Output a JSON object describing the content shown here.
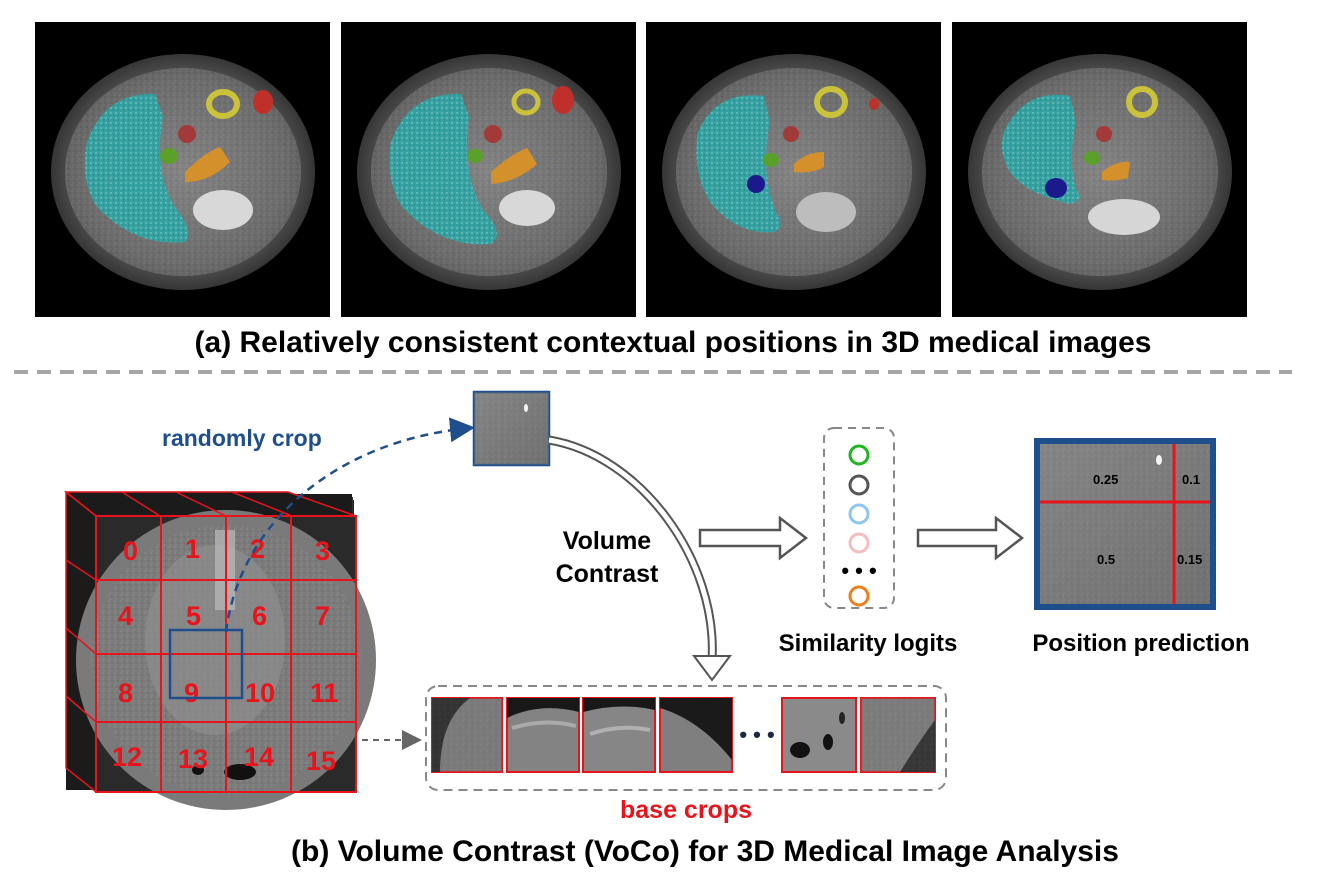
{
  "part_a": {
    "caption": "(a) Relatively consistent contextual positions in 3D medical images",
    "scan_count": 4
  },
  "part_b": {
    "caption": "(b) Volume Contrast (VoCo) for 3D Medical Image Analysis",
    "randomly_crop_label": "randomly crop",
    "volume_contrast_label_line1": "Volume",
    "volume_contrast_label_line2": "Contrast",
    "base_crops_label": "base crops",
    "similarity_logits_label": "Similarity logits",
    "position_prediction_label": "Position prediction",
    "grid_numbers": [
      "0",
      "1",
      "2",
      "3",
      "4",
      "5",
      "6",
      "7",
      "8",
      "9",
      "10",
      "11",
      "12",
      "13",
      "14",
      "15"
    ],
    "prediction_values": [
      "0.25",
      "0.1",
      "0.5",
      "0.15"
    ],
    "logit_colors": [
      "#1fb51f",
      "#555555",
      "#8fc6f0",
      "#f4bcbc",
      "#ef7f1a"
    ],
    "ellipsis": "• • •"
  },
  "colors": {
    "grid_red": "#e8141b",
    "crop_blue": "#1f4e8c",
    "randomly_crop_text": "#1f4e8c",
    "base_crops_text": "#e8141b",
    "liver_teal": "#2fa6a6"
  }
}
